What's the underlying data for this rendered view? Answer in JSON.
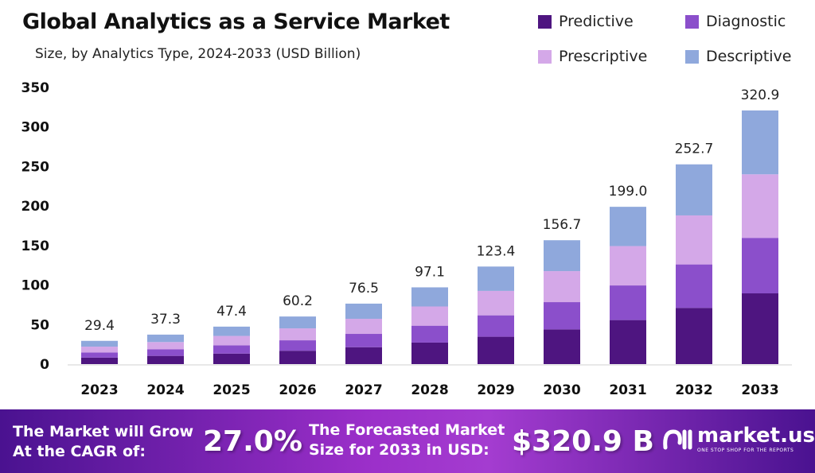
{
  "chart_data": {
    "type": "bar",
    "stacked": true,
    "title": "Global Analytics as a Service Market",
    "subtitle": "Size, by Analytics Type, 2024-2033 (USD Billion)",
    "categories": [
      "2023",
      "2024",
      "2025",
      "2026",
      "2027",
      "2028",
      "2029",
      "2030",
      "2031",
      "2032",
      "2033"
    ],
    "series": [
      {
        "name": "Predictive",
        "color": "#4e1580",
        "values": [
          8.2,
          10.4,
          13.3,
          16.9,
          21.4,
          27.2,
          34.6,
          43.9,
          55.7,
          71.1,
          89.5
        ]
      },
      {
        "name": "Diagnostic",
        "color": "#8b4fcb",
        "values": [
          6.5,
          8.2,
          10.4,
          13.2,
          16.8,
          21.4,
          27.1,
          34.5,
          43.8,
          55.0,
          70.2
        ]
      },
      {
        "name": "Prescriptive",
        "color": "#d4a8e8",
        "values": [
          7.4,
          9.3,
          11.9,
          15.1,
          19.1,
          24.3,
          30.9,
          39.2,
          49.8,
          62.0,
          80.4
        ]
      },
      {
        "name": "Descriptive",
        "color": "#8fa8dc",
        "values": [
          7.3,
          9.4,
          11.8,
          15.0,
          19.2,
          24.2,
          30.8,
          39.1,
          49.7,
          64.6,
          80.8
        ]
      }
    ],
    "totals": [
      "29.4",
      "37.3",
      "47.4",
      "60.2",
      "76.5",
      "97.1",
      "123.4",
      "156.7",
      "199.0",
      "252.7",
      "320.9"
    ],
    "yticks": [
      0,
      50,
      100,
      150,
      200,
      250,
      300,
      350
    ],
    "ylim": [
      0,
      350
    ],
    "grid": false,
    "legend": "top-right"
  },
  "banner": {
    "cagr_label_1": "The Market will Grow",
    "cagr_label_2": "At the CAGR of:",
    "cagr_value": "27.0%",
    "forecast_label_1": "The Forecasted Market",
    "forecast_label_2": "Size for 2033 in USD:",
    "forecast_value": "$320.9 B",
    "logo_name": "market.us",
    "logo_tagline": "ONE STOP SHOP FOR THE REPORTS"
  }
}
